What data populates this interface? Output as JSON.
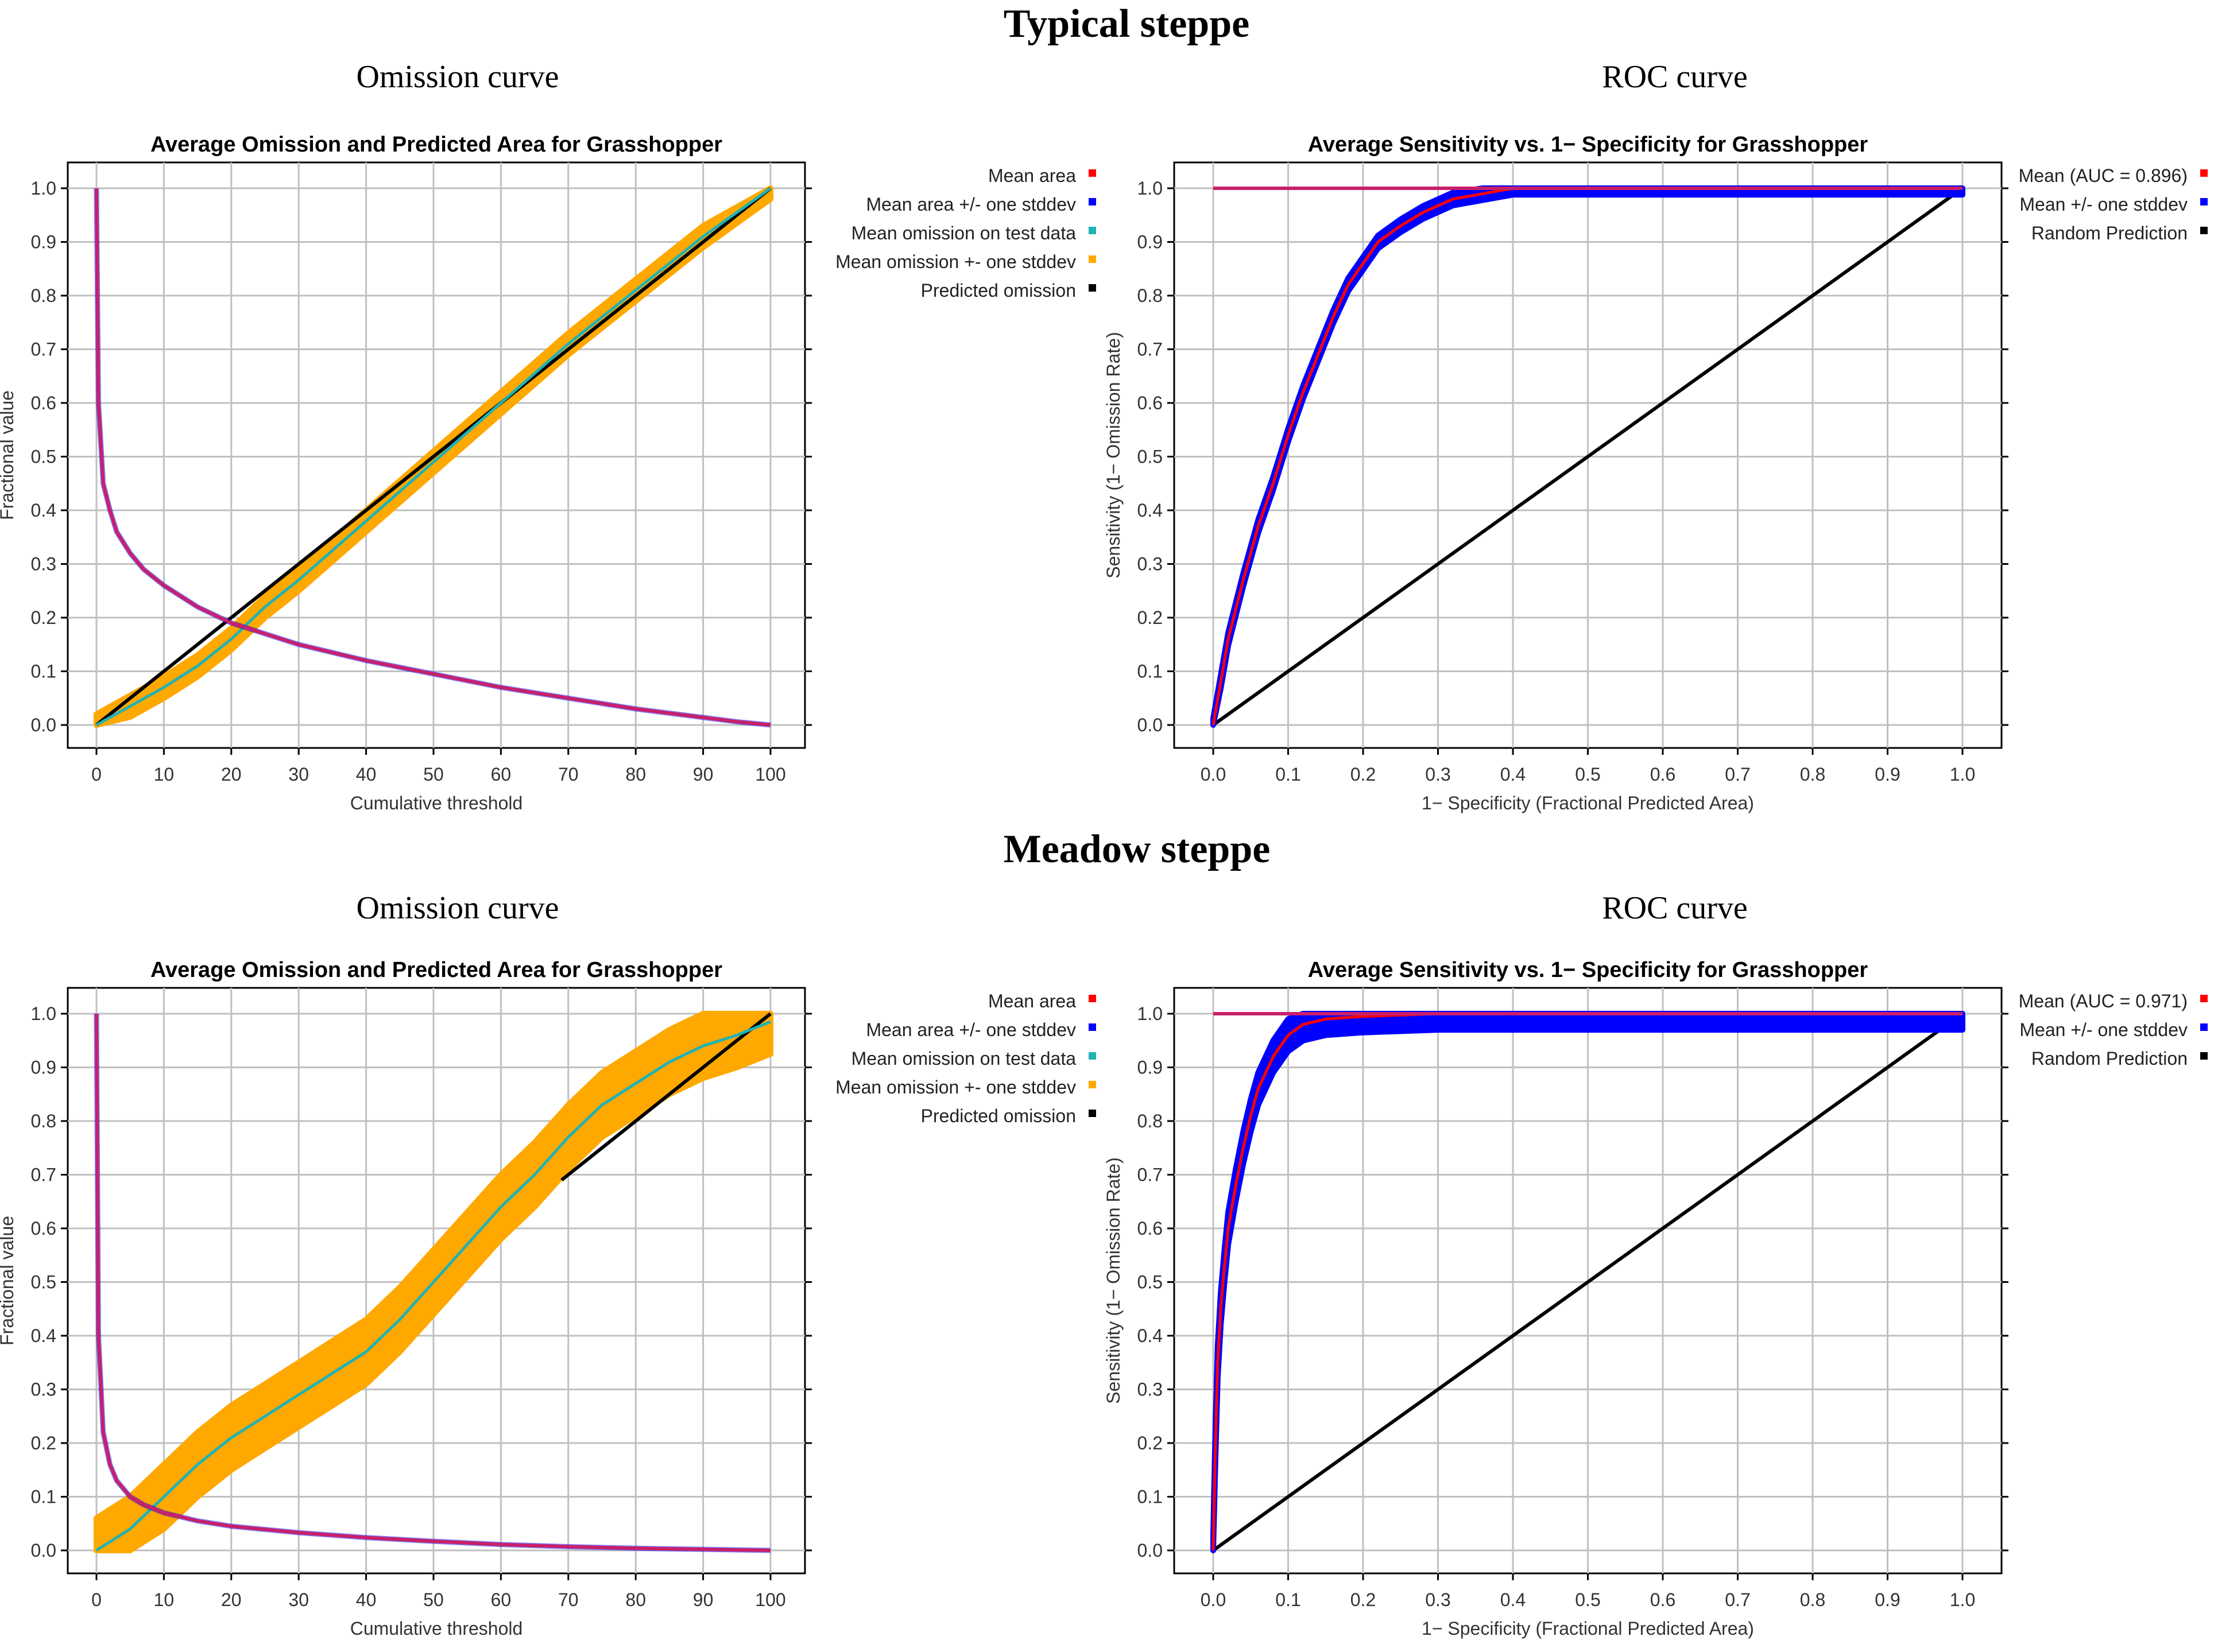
{
  "sections": [
    {
      "heading": "Typical steppe",
      "panels": [
        {
          "subtitle": "Omission curve",
          "chart_index": 0
        },
        {
          "subtitle": "ROC curve",
          "chart_index": 1
        }
      ]
    },
    {
      "heading": "Meadow steppe",
      "panels": [
        {
          "subtitle": "Omission curve",
          "chart_index": 2
        },
        {
          "subtitle": "ROC curve",
          "chart_index": 3
        }
      ]
    }
  ],
  "colors": {
    "mean_area": "#ff0000",
    "mean_area_band": "#0000ff",
    "mean_omission": "#22b2b2",
    "omission_band": "#ffa800",
    "predicted": "#000000",
    "area_curve": "#c8206a",
    "grid": "#c0c0c0"
  },
  "chart_data": [
    {
      "type": "line",
      "kind": "omission",
      "title": "Average Omission and Predicted Area for Grasshopper",
      "xlabel": "Cumulative threshold",
      "ylabel": "Fractional value",
      "xlim": [
        0,
        100
      ],
      "ylim": [
        0,
        1
      ],
      "grid": true,
      "x_ticks": [
        "0",
        "10",
        "20",
        "30",
        "40",
        "50",
        "60",
        "70",
        "80",
        "90",
        "100"
      ],
      "y_ticks": [
        "0.0",
        "0.1",
        "0.2",
        "0.3",
        "0.4",
        "0.5",
        "0.6",
        "0.7",
        "0.8",
        "0.9",
        "1.0"
      ],
      "legend": [
        {
          "label": "Mean area",
          "color": "#ff0000"
        },
        {
          "label": "Mean area +/- one stddev",
          "color": "#0000ff"
        },
        {
          "label": "Mean omission on test data",
          "color": "#22b2b2"
        },
        {
          "label": "Mean omission +- one stddev",
          "color": "#ffa800"
        },
        {
          "label": "Predicted omission",
          "color": "#000000"
        }
      ],
      "series": [
        {
          "name": "Mean area",
          "x": [
            0,
            0.3,
            1,
            2,
            3,
            5,
            7,
            10,
            15,
            20,
            30,
            40,
            50,
            60,
            70,
            80,
            90,
            95,
            100
          ],
          "y": [
            1.0,
            0.6,
            0.45,
            0.4,
            0.36,
            0.32,
            0.29,
            0.26,
            0.22,
            0.19,
            0.15,
            0.12,
            0.095,
            0.07,
            0.05,
            0.03,
            0.014,
            0.006,
            0.0
          ]
        },
        {
          "name": "Mean omission on test data",
          "x": [
            0,
            5,
            10,
            15,
            20,
            25,
            30,
            40,
            50,
            60,
            70,
            80,
            90,
            100
          ],
          "y": [
            0,
            0.035,
            0.07,
            0.11,
            0.16,
            0.22,
            0.27,
            0.38,
            0.49,
            0.6,
            0.71,
            0.81,
            0.91,
            1.0
          ],
          "band": 0.02
        },
        {
          "name": "Predicted omission",
          "x": [
            0,
            100
          ],
          "y": [
            0,
            1
          ]
        }
      ]
    },
    {
      "type": "line",
      "kind": "roc",
      "title": "Average Sensitivity vs. 1− Specificity for Grasshopper",
      "xlabel": "1− Specificity (Fractional Predicted Area)",
      "ylabel": "Sensitivity (1− Omission Rate)",
      "xlim": [
        0,
        1
      ],
      "ylim": [
        0,
        1
      ],
      "grid": true,
      "x_ticks": [
        "0.0",
        "0.1",
        "0.2",
        "0.3",
        "0.4",
        "0.5",
        "0.6",
        "0.7",
        "0.8",
        "0.9",
        "1.0"
      ],
      "y_ticks": [
        "0.0",
        "0.1",
        "0.2",
        "0.3",
        "0.4",
        "0.5",
        "0.6",
        "0.7",
        "0.8",
        "0.9",
        "1.0"
      ],
      "legend": [
        {
          "label": "Mean (AUC = 0.896)",
          "color": "#ff0000"
        },
        {
          "label": "Mean +/- one stddev",
          "color": "#0000ff"
        },
        {
          "label": "Random Prediction",
          "color": "#000000"
        }
      ],
      "series": [
        {
          "name": "Mean (AUC = 0.896)",
          "x": [
            0,
            0.01,
            0.02,
            0.04,
            0.06,
            0.08,
            0.1,
            0.12,
            0.14,
            0.16,
            0.18,
            0.2,
            0.22,
            0.25,
            0.28,
            0.32,
            0.36,
            0.4,
            0.5,
            0.7,
            1.0
          ],
          "y": [
            0,
            0.08,
            0.16,
            0.27,
            0.37,
            0.45,
            0.54,
            0.62,
            0.69,
            0.76,
            0.82,
            0.86,
            0.9,
            0.93,
            0.955,
            0.98,
            0.99,
            1.0,
            1.0,
            1.0,
            1.0
          ],
          "band": 0.012
        },
        {
          "name": "Random Prediction",
          "x": [
            0,
            1
          ],
          "y": [
            0,
            1
          ]
        }
      ]
    },
    {
      "type": "line",
      "kind": "omission",
      "title": "Average Omission and Predicted Area for Grasshopper",
      "xlabel": "Cumulative threshold",
      "ylabel": "Fractional value",
      "xlim": [
        0,
        100
      ],
      "ylim": [
        0,
        1
      ],
      "grid": true,
      "x_ticks": [
        "0",
        "10",
        "20",
        "30",
        "40",
        "50",
        "60",
        "70",
        "80",
        "90",
        "100"
      ],
      "y_ticks": [
        "0.0",
        "0.1",
        "0.2",
        "0.3",
        "0.4",
        "0.5",
        "0.6",
        "0.7",
        "0.8",
        "0.9",
        "1.0"
      ],
      "legend": [
        {
          "label": "Mean area",
          "color": "#ff0000"
        },
        {
          "label": "Mean area +/- one stddev",
          "color": "#0000ff"
        },
        {
          "label": "Mean omission on test data",
          "color": "#22b2b2"
        },
        {
          "label": "Mean omission +- one stddev",
          "color": "#ffa800"
        },
        {
          "label": "Predicted omission",
          "color": "#000000"
        }
      ],
      "series": [
        {
          "name": "Mean area",
          "x": [
            0,
            0.3,
            1,
            2,
            3,
            5,
            7,
            10,
            15,
            20,
            30,
            40,
            50,
            60,
            70,
            80,
            90,
            100
          ],
          "y": [
            1.0,
            0.4,
            0.22,
            0.16,
            0.13,
            0.1,
            0.085,
            0.07,
            0.055,
            0.045,
            0.033,
            0.024,
            0.017,
            0.011,
            0.007,
            0.004,
            0.002,
            0.0
          ]
        },
        {
          "name": "Mean omission on test data",
          "x": [
            0,
            5,
            10,
            15,
            20,
            25,
            30,
            35,
            40,
            45,
            50,
            55,
            60,
            65,
            70,
            75,
            80,
            85,
            90,
            95,
            100
          ],
          "y": [
            0,
            0.04,
            0.1,
            0.16,
            0.21,
            0.25,
            0.29,
            0.33,
            0.37,
            0.43,
            0.5,
            0.57,
            0.64,
            0.7,
            0.77,
            0.83,
            0.87,
            0.91,
            0.94,
            0.96,
            0.985
          ],
          "band": 0.06
        },
        {
          "name": "Predicted omission",
          "x": [
            69,
            100
          ],
          "y": [
            0.69,
            1.0
          ]
        }
      ]
    },
    {
      "type": "line",
      "kind": "roc",
      "title": "Average Sensitivity vs. 1− Specificity for Grasshopper",
      "xlabel": "1− Specificity (Fractional Predicted Area)",
      "ylabel": "Sensitivity (1− Omission Rate)",
      "xlim": [
        0,
        1
      ],
      "ylim": [
        0,
        1
      ],
      "grid": true,
      "x_ticks": [
        "0.0",
        "0.1",
        "0.2",
        "0.3",
        "0.4",
        "0.5",
        "0.6",
        "0.7",
        "0.8",
        "0.9",
        "1.0"
      ],
      "y_ticks": [
        "0.0",
        "0.1",
        "0.2",
        "0.3",
        "0.4",
        "0.5",
        "0.6",
        "0.7",
        "0.8",
        "0.9",
        "1.0"
      ],
      "legend": [
        {
          "label": "Mean (AUC = 0.971)",
          "color": "#ff0000"
        },
        {
          "label": "Mean +/- one stddev",
          "color": "#0000ff"
        },
        {
          "label": "Random Prediction",
          "color": "#000000"
        }
      ],
      "series": [
        {
          "name": "Mean (AUC = 0.971)",
          "x": [
            0,
            0.003,
            0.006,
            0.01,
            0.015,
            0.02,
            0.03,
            0.04,
            0.05,
            0.06,
            0.08,
            0.1,
            0.12,
            0.15,
            0.2,
            0.3,
            0.4,
            0.6,
            1.0
          ],
          "y": [
            0,
            0.2,
            0.35,
            0.45,
            0.53,
            0.6,
            0.68,
            0.75,
            0.81,
            0.86,
            0.92,
            0.96,
            0.98,
            0.99,
            0.995,
            1.0,
            1.0,
            1.0,
            1.0
          ],
          "band": 0.03
        },
        {
          "name": "Random Prediction",
          "x": [
            0,
            1
          ],
          "y": [
            0,
            1
          ]
        }
      ]
    }
  ]
}
